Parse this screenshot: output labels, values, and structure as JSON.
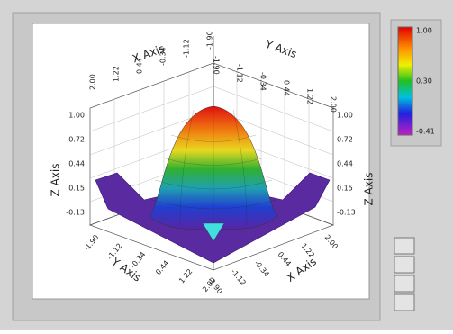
{
  "graph": {
    "x_axis": {
      "label": "X Axis",
      "ticks": [
        "2.00",
        "1.22",
        "0.44",
        "-0.34",
        "-1.12",
        "-1.90"
      ]
    },
    "y_axis": {
      "label": "Y Axis",
      "ticks": [
        "-1.90",
        "-1.12",
        "-0.34",
        "0.44",
        "1.22",
        "2.00"
      ]
    },
    "z_axis": {
      "label": "Z Axis",
      "ticks": [
        "1.00",
        "0.72",
        "0.44",
        "0.15",
        "-0.13"
      ]
    }
  },
  "color_scale": {
    "labels": [
      "1.00",
      "0.30",
      "-0.41"
    ]
  }
}
